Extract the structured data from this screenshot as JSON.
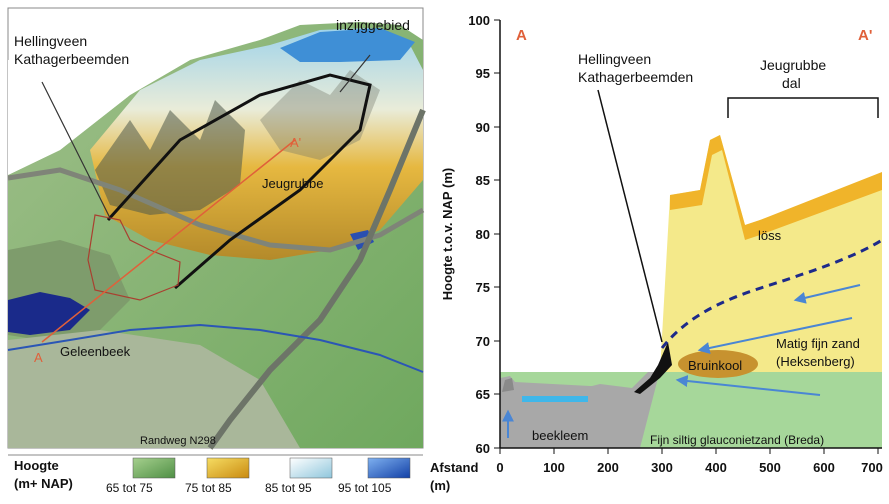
{
  "map": {
    "label_hellingveen": [
      "Hellingveen",
      "Kathagerbeemden"
    ],
    "label_inzijggebied": "inzijggebied",
    "label_jeugrubbe": "Jeugrubbe",
    "label_a_prime": "A'",
    "label_a": "A",
    "label_geleenbeek": "Geleenbeek",
    "label_randweg": "Randweg N298"
  },
  "legend": {
    "title_line1": "Hoogte",
    "title_line2": "(m+ NAP)",
    "items": [
      {
        "label": "65 tot 75",
        "color": "#79b86a"
      },
      {
        "label": "75 tot 85",
        "color": "#e8b11e"
      },
      {
        "label": "85 tot 95",
        "color": "#cfe6ee"
      },
      {
        "label": "95 tot 105",
        "color": "#2e63c8"
      }
    ]
  },
  "section": {
    "label_a": "A",
    "label_a_prime": "A'",
    "label_hellingveen": [
      "Hellingveen",
      "Kathagerbeemden"
    ],
    "label_jeugrubbe_dal": [
      "Jeugrubbe",
      "dal"
    ],
    "label_loss": "löss",
    "label_matig_fijn_zand": [
      "Matig fijn zand",
      "(Heksenberg)"
    ],
    "label_bruinkool": "Bruinkool",
    "label_beekleem": "beekleem",
    "label_fijn_siltig": "Fijn siltig glauconietzand (Breda)",
    "ylabel": "Hoogte t.o.v. NAP (m)",
    "xlabel_line1": "Afstand",
    "xlabel_line2": "(m)",
    "yticks": [
      "100",
      "95",
      "90",
      "85",
      "80",
      "75",
      "70",
      "65",
      "60"
    ],
    "xticks": [
      "0",
      "100",
      "200",
      "300",
      "400",
      "500",
      "600",
      "700"
    ]
  }
}
